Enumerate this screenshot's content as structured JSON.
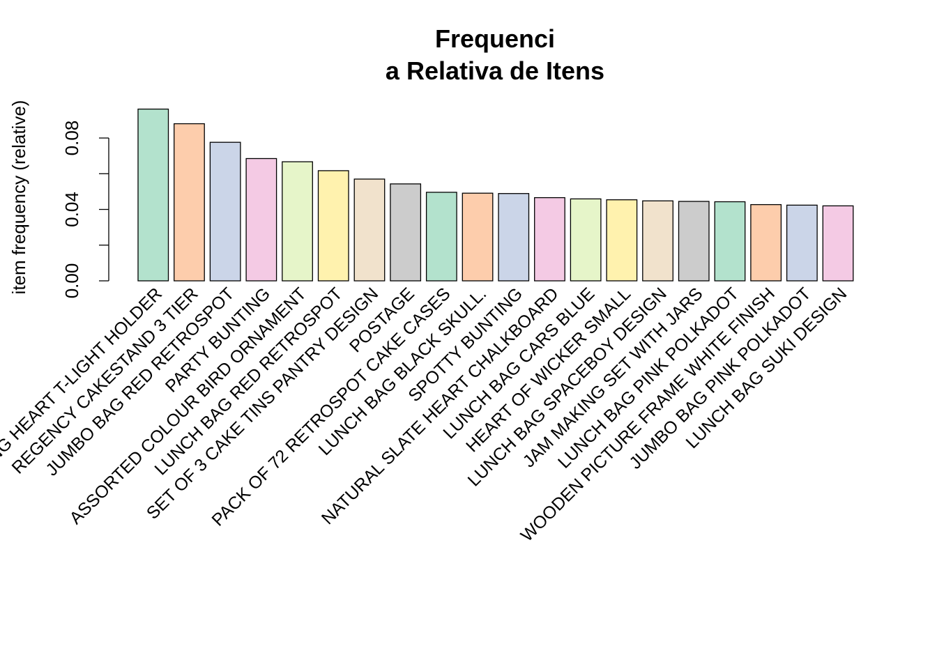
{
  "chart_data": {
    "type": "bar",
    "title_lines": [
      "Frequenci",
      "a Relativa de Itens"
    ],
    "ylabel": "item frequency (relative)",
    "xlabel": "",
    "ylim": [
      0,
      0.1
    ],
    "yticks": [
      0.0,
      0.02,
      0.04,
      0.06,
      0.08
    ],
    "ytick_labels": [
      "0.00",
      "",
      "0.04",
      "",
      "0.08"
    ],
    "grid": false,
    "categories": [
      "WHITE HANGING HEART T-LIGHT HOLDER",
      "REGENCY CAKESTAND 3 TIER",
      "JUMBO BAG RED RETROSPOT",
      "PARTY BUNTING",
      "ASSORTED COLOUR BIRD ORNAMENT",
      "LUNCH BAG RED RETROSPOT",
      "SET OF 3 CAKE TINS PANTRY DESIGN",
      "POSTAGE",
      "PACK OF 72 RETROSPOT CAKE CASES",
      "LUNCH BAG  BLACK SKULL.",
      "SPOTTY BUNTING",
      "NATURAL SLATE HEART CHALKBOARD",
      "LUNCH BAG CARS BLUE",
      "HEART OF WICKER SMALL",
      "LUNCH BAG SPACEBOY DESIGN",
      "JAM MAKING SET WITH JARS",
      "LUNCH BAG PINK POLKADOT",
      "WOODEN PICTURE FRAME WHITE FINISH",
      "JUMBO BAG PINK POLKADOT",
      "LUNCH BAG SUKI DESIGN"
    ],
    "values": [
      0.0962,
      0.088,
      0.0776,
      0.0685,
      0.0667,
      0.0617,
      0.057,
      0.0543,
      0.0496,
      0.0491,
      0.0489,
      0.0466,
      0.0459,
      0.0454,
      0.0448,
      0.0445,
      0.0443,
      0.0427,
      0.0424,
      0.042
    ],
    "colors": [
      "#B3E2CD",
      "#FDCDAC",
      "#CBD5E8",
      "#F4CAE4",
      "#E6F5C9",
      "#FFF2AE",
      "#F1E2CC",
      "#CCCCCC"
    ]
  }
}
